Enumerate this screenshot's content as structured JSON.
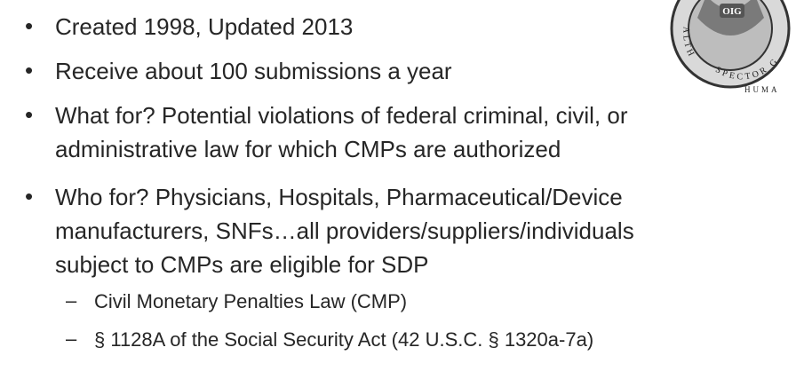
{
  "bullets": [
    {
      "lines": [
        "Created 1998, Updated 2013"
      ]
    },
    {
      "lines": [
        "Receive about 100 submissions a year"
      ]
    },
    {
      "lines": [
        "What for? Potential violations of federal criminal, civil, or",
        "administrative law for which CMPs are authorized"
      ]
    },
    {
      "lines": [
        "Who for? Physicians, Hospitals, Pharmaceutical/Device",
        "manufacturers, SNFs…all providers/suppliers/individuals",
        "subject to CMPs are eligible for SDP"
      ]
    }
  ],
  "sub_bullets": [
    "Civil Monetary Penalties Law (CMP)",
    "§ 1128A of the Social Security Act (42 U.S.C. § 1320a-7a)"
  ],
  "seal": {
    "center": "OIG",
    "arc_lower": "SPECTOR G",
    "arc_bottom": "HUMA",
    "arc_left": "ALTH"
  }
}
